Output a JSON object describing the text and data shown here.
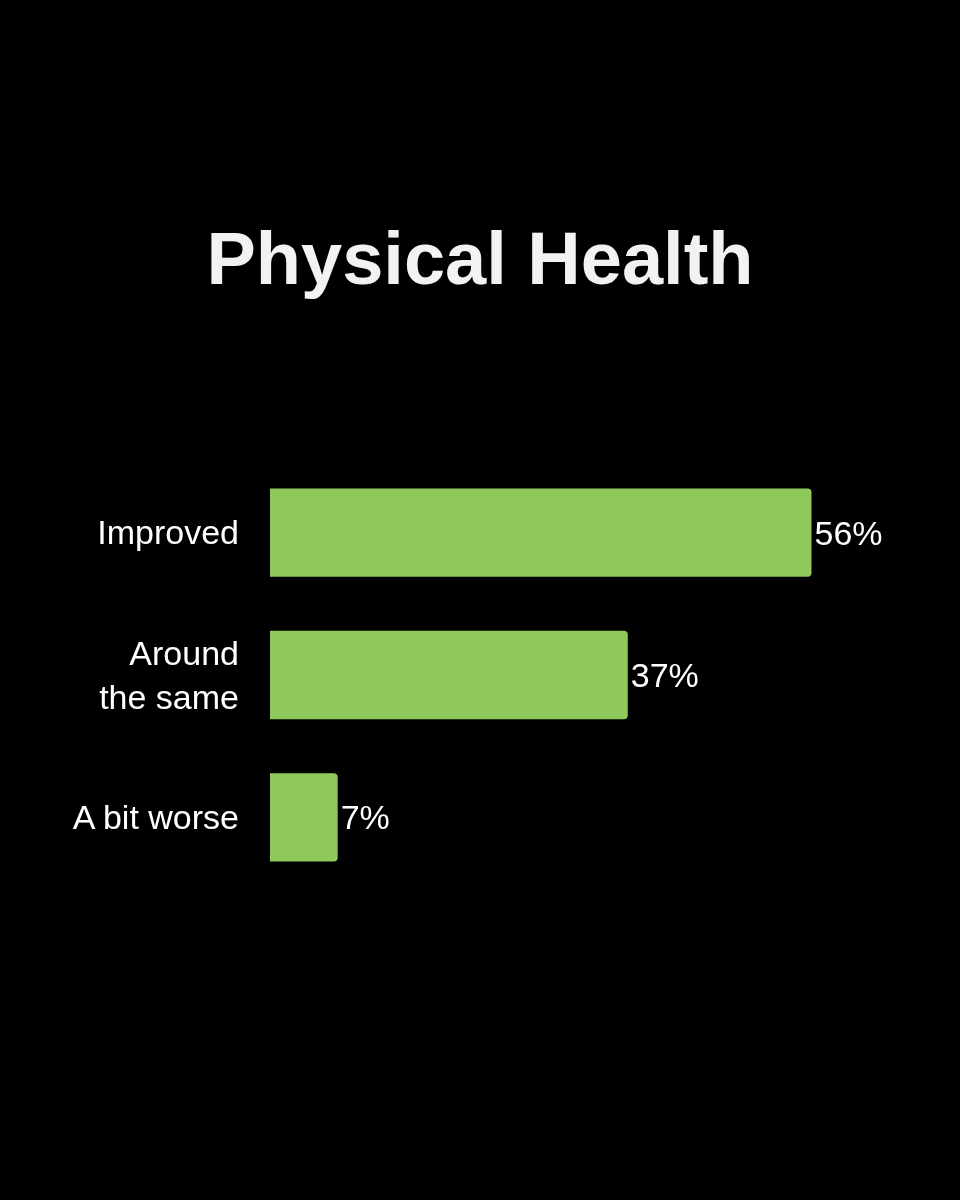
{
  "chart_data": {
    "type": "bar",
    "title": "Physical Health",
    "orientation": "horizontal",
    "categories": [
      "Improved",
      "Around the same",
      "A bit worse"
    ],
    "values": [
      56,
      37,
      7
    ],
    "value_labels": [
      "56%",
      "37%",
      "7%"
    ],
    "color": "#8fc95b",
    "tick_labels": "y"
  }
}
